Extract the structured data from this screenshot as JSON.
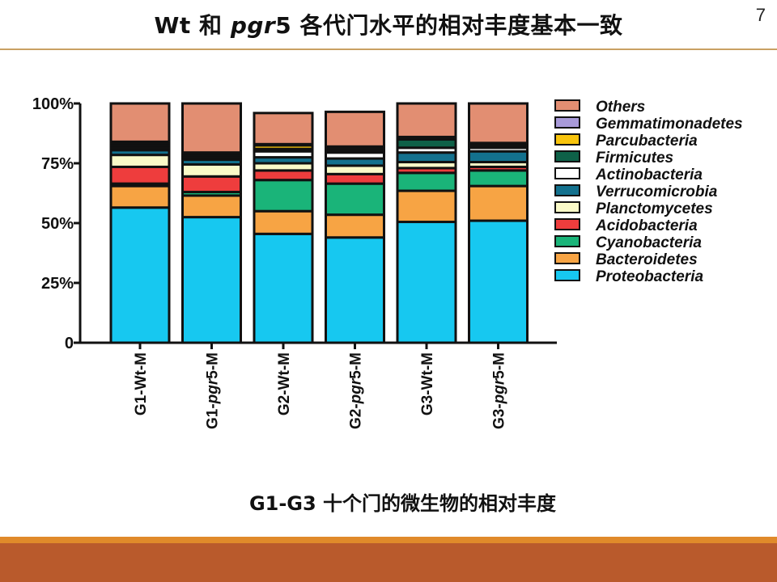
{
  "slide": {
    "title_part1": "Wt 和 ",
    "title_italic": "pgr",
    "title_part2": "5 各代门水平的相对丰度基本一致",
    "page_number": "7",
    "caption": "G1-G3 十个门的微生物的相对丰度"
  },
  "colors": {
    "title_rule": "#c9a063",
    "footer_thin": "#e08a2a",
    "footer_band": "#b95a2c"
  },
  "chart_data": {
    "type": "bar",
    "stacked": true,
    "normalized_percent": true,
    "categories": [
      {
        "prefix": "G1-",
        "italic": "Wt",
        "italic_style": false,
        "suffix": "-M",
        "label": "G1-Wt-M"
      },
      {
        "prefix": "G1-",
        "italic": "pgr",
        "italic_style": true,
        "suffix": "5-M",
        "label": "G1-pgr5-M"
      },
      {
        "prefix": "G2-",
        "italic": "Wt",
        "italic_style": false,
        "suffix": "-M",
        "label": "G2-Wt-M"
      },
      {
        "prefix": "G2-",
        "italic": "pgr",
        "italic_style": true,
        "suffix": "5-M",
        "label": "G2-pgr5-M"
      },
      {
        "prefix": "G3-",
        "italic": "Wt",
        "italic_style": false,
        "suffix": "-M",
        "label": "G3-Wt-M"
      },
      {
        "prefix": "G3-",
        "italic": "pgr",
        "italic_style": true,
        "suffix": "5-M",
        "label": "G3-pgr5-M"
      }
    ],
    "yticks": [
      "0",
      "25%",
      "50%",
      "75%",
      "100%"
    ],
    "ylim": [
      0,
      100
    ],
    "series": [
      {
        "name": "Proteobacteria",
        "color": "#17c8f0",
        "values": [
          56.5,
          52.5,
          45.5,
          44.0,
          50.5,
          51.0
        ]
      },
      {
        "name": "Bacteroidetes",
        "color": "#f7a444",
        "values": [
          9.0,
          9.0,
          9.5,
          9.5,
          13.0,
          14.5
        ]
      },
      {
        "name": "Cyanobacteria",
        "color": "#1ab479",
        "values": [
          1.0,
          1.5,
          13.0,
          13.0,
          7.5,
          6.5
        ]
      },
      {
        "name": "Acidobacteria",
        "color": "#ee3d3d",
        "values": [
          7.0,
          6.5,
          4.0,
          4.0,
          2.0,
          1.5
        ]
      },
      {
        "name": "Planctomycetes",
        "color": "#fafac8",
        "values": [
          5.0,
          5.0,
          3.0,
          3.5,
          2.5,
          2.0
        ]
      },
      {
        "name": "Verrucomicrobia",
        "color": "#13718e",
        "values": [
          2.0,
          2.0,
          2.5,
          3.0,
          4.0,
          4.5
        ]
      },
      {
        "name": "Actinobacteria",
        "color": "#ffffff",
        "values": [
          1.0,
          1.0,
          2.5,
          2.5,
          2.0,
          1.5
        ]
      },
      {
        "name": "Firmicutes",
        "color": "#0e6148",
        "values": [
          1.0,
          1.0,
          1.0,
          1.0,
          3.5,
          1.0
        ]
      },
      {
        "name": "Parcubacteria",
        "color": "#f8c40d",
        "values": [
          1.0,
          0.5,
          1.5,
          1.0,
          0.5,
          0.5
        ]
      },
      {
        "name": "Gemmatimonadetes",
        "color": "#a89ad9",
        "values": [
          0.5,
          0.5,
          0.5,
          0.5,
          0.5,
          0.5
        ]
      },
      {
        "name": "Others",
        "color": "#e28e72",
        "values": [
          16.0,
          20.5,
          13.0,
          14.5,
          14.0,
          16.5
        ]
      }
    ],
    "legend_order": [
      "Others",
      "Gemmatimonadetes",
      "Parcubacteria",
      "Firmicutes",
      "Actinobacteria",
      "Verrucomicrobia",
      "Planctomycetes",
      "Acidobacteria",
      "Cyanobacteria",
      "Bacteroidetes",
      "Proteobacteria"
    ],
    "legend_position": "right",
    "grid": false
  }
}
